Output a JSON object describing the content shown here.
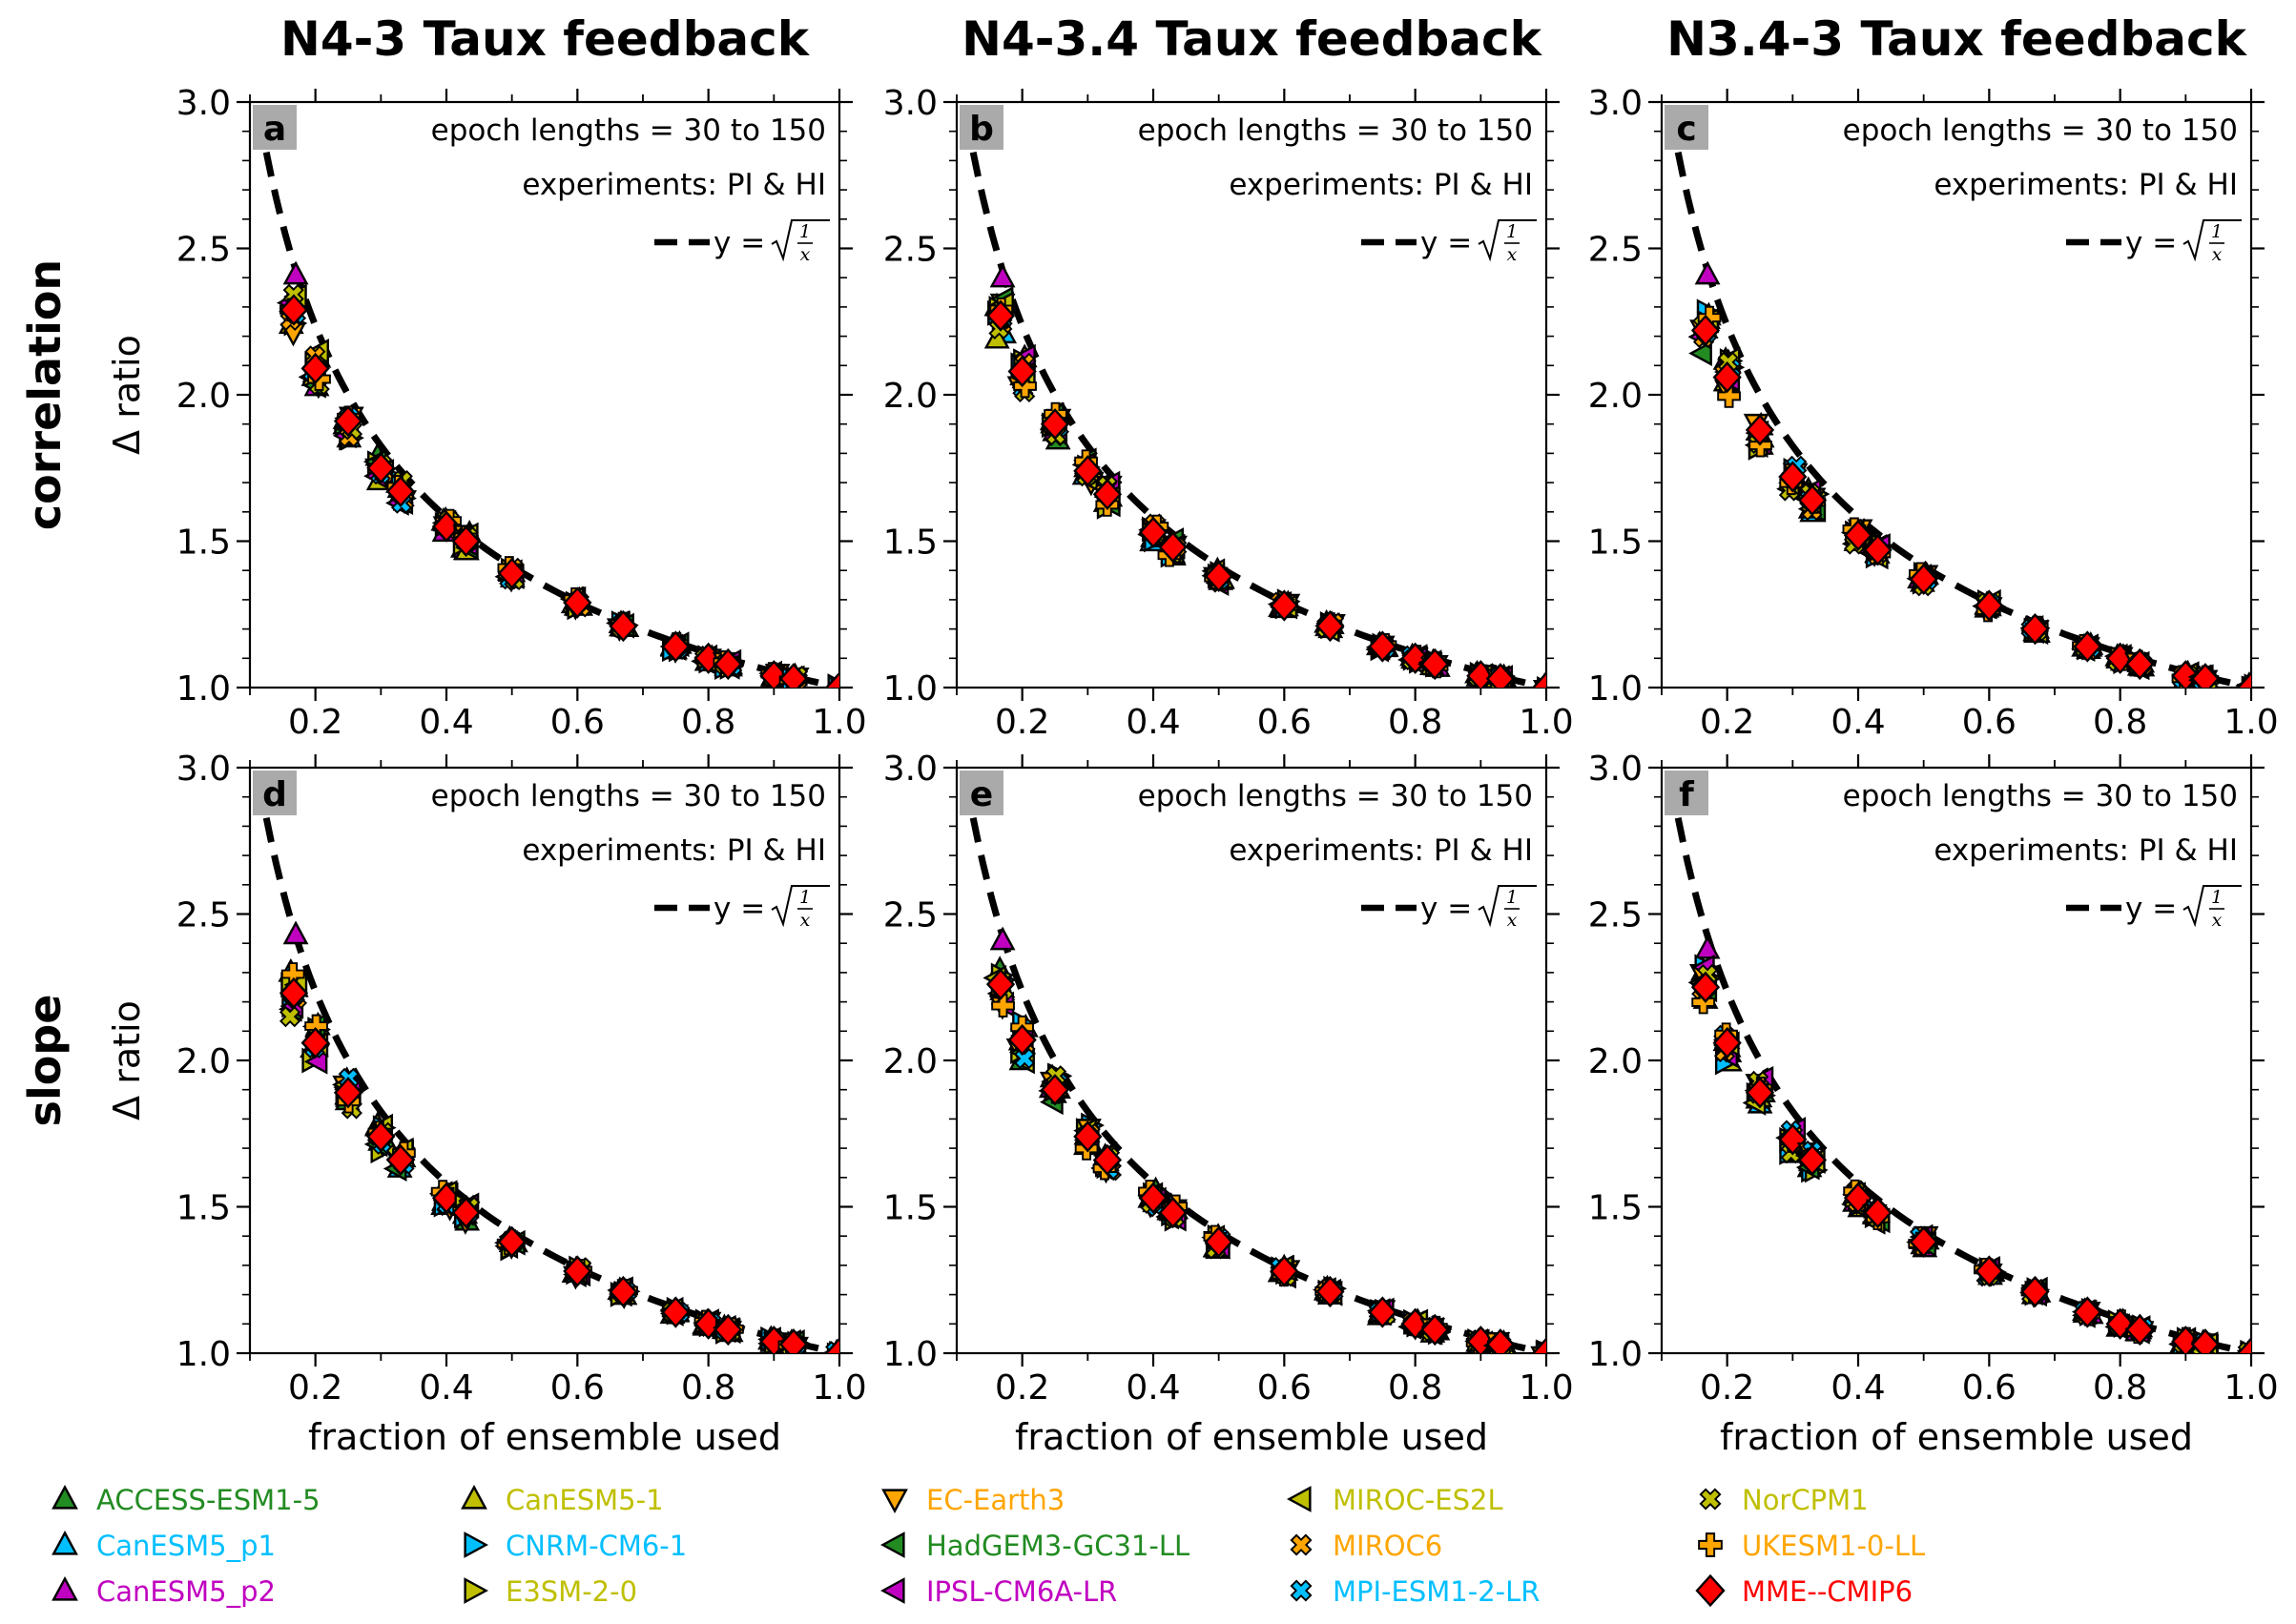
{
  "column_titles": [
    "N4-3 Taux feedback",
    "N4-3.4 Taux feedback",
    "N3.4-3 Taux feedback"
  ],
  "row_titles": [
    "correlation",
    "slope"
  ],
  "annotations": {
    "epoch": "epoch lengths = 30 to 150",
    "experiments": "experiments: PI & HI",
    "curve_prefix": "y = ",
    "frac_num": "1",
    "frac_den": "x"
  },
  "models": [
    {
      "name": "ACCESS-ESM1-5",
      "color": "#228b22",
      "marker": "triangle-up"
    },
    {
      "name": "CanESM5_p1",
      "color": "#00bfff",
      "marker": "triangle-up"
    },
    {
      "name": "CanESM5_p2",
      "color": "#c000c0",
      "marker": "triangle-up"
    },
    {
      "name": "CanESM5-1",
      "color": "#bfbf00",
      "marker": "triangle-up"
    },
    {
      "name": "CNRM-CM6-1",
      "color": "#00bfff",
      "marker": "triangle-right"
    },
    {
      "name": "E3SM-2-0",
      "color": "#bfbf00",
      "marker": "triangle-right"
    },
    {
      "name": "EC-Earth3",
      "color": "#ffa500",
      "marker": "triangle-down"
    },
    {
      "name": "HadGEM3-GC31-LL",
      "color": "#228b22",
      "marker": "triangle-left"
    },
    {
      "name": "IPSL-CM6A-LR",
      "color": "#c000c0",
      "marker": "triangle-left"
    },
    {
      "name": "MIROC-ES2L",
      "color": "#bfbf00",
      "marker": "triangle-left"
    },
    {
      "name": "MIROC6",
      "color": "#ffa500",
      "marker": "x"
    },
    {
      "name": "MPI-ESM1-2-LR",
      "color": "#00bfff",
      "marker": "x"
    },
    {
      "name": "NorCPM1",
      "color": "#bfbf00",
      "marker": "x"
    },
    {
      "name": "UKESM1-0-LL",
      "color": "#ffa500",
      "marker": "plus"
    },
    {
      "name": "MME--CMIP6",
      "color": "#ff0000",
      "marker": "diamond"
    }
  ],
  "chart_data": [
    {
      "type": "scatter",
      "panel": "a",
      "column": "N4-3 Taux feedback",
      "row": "correlation",
      "xlabel": "",
      "ylabel": "Δ ratio",
      "xlim": [
        0.1,
        1.0
      ],
      "ylim": [
        1.0,
        3.0
      ],
      "xticks": [
        0.2,
        0.4,
        0.6,
        0.8,
        1.0
      ],
      "yticks": [
        1.0,
        1.5,
        2.0,
        2.5,
        3.0
      ],
      "curve": {
        "label": "y = √(1/x)",
        "style": "dashed",
        "color": "#000000",
        "x_range": [
          0.125,
          1.0
        ]
      },
      "x": [
        0.167,
        0.2,
        0.25,
        0.3,
        0.33,
        0.4,
        0.43,
        0.5,
        0.6,
        0.67,
        0.75,
        0.8,
        0.83,
        0.9,
        0.93,
        1.0
      ],
      "mme_values": [
        2.29,
        2.09,
        1.91,
        1.75,
        1.67,
        1.55,
        1.5,
        1.39,
        1.29,
        1.21,
        1.14,
        1.1,
        1.08,
        1.04,
        1.03,
        1.0
      ],
      "lowest_point_spread": 0.05,
      "topmost_marker": {
        "model": "CanESM5_p2",
        "x": 0.167,
        "y": 2.41
      }
    },
    {
      "type": "scatter",
      "panel": "b",
      "column": "N4-3.4 Taux feedback",
      "row": "correlation",
      "xlabel": "",
      "ylabel": "",
      "xlim": [
        0.1,
        1.0
      ],
      "ylim": [
        1.0,
        3.0
      ],
      "xticks": [
        0.2,
        0.4,
        0.6,
        0.8,
        1.0
      ],
      "yticks": [
        1.0,
        1.5,
        2.0,
        2.5,
        3.0
      ],
      "curve": {
        "label": "y = √(1/x)",
        "style": "dashed",
        "color": "#000000",
        "x_range": [
          0.125,
          1.0
        ]
      },
      "x": [
        0.167,
        0.2,
        0.25,
        0.3,
        0.33,
        0.4,
        0.43,
        0.5,
        0.6,
        0.67,
        0.75,
        0.8,
        0.83,
        0.9,
        0.93,
        1.0
      ],
      "mme_values": [
        2.27,
        2.08,
        1.9,
        1.74,
        1.66,
        1.53,
        1.48,
        1.38,
        1.28,
        1.21,
        1.14,
        1.1,
        1.08,
        1.04,
        1.03,
        1.0
      ],
      "lowest_point_spread": 0.05,
      "topmost_marker": {
        "model": "CanESM5_p2",
        "x": 0.167,
        "y": 2.4
      }
    },
    {
      "type": "scatter",
      "panel": "c",
      "column": "N3.4-3 Taux feedback",
      "row": "correlation",
      "xlabel": "",
      "ylabel": "",
      "xlim": [
        0.1,
        1.0
      ],
      "ylim": [
        1.0,
        3.0
      ],
      "xticks": [
        0.2,
        0.4,
        0.6,
        0.8,
        1.0
      ],
      "yticks": [
        1.0,
        1.5,
        2.0,
        2.5,
        3.0
      ],
      "curve": {
        "label": "y = √(1/x)",
        "style": "dashed",
        "color": "#000000",
        "x_range": [
          0.125,
          1.0
        ]
      },
      "x": [
        0.167,
        0.2,
        0.25,
        0.3,
        0.33,
        0.4,
        0.43,
        0.5,
        0.6,
        0.67,
        0.75,
        0.8,
        0.83,
        0.9,
        0.93,
        1.0
      ],
      "mme_values": [
        2.22,
        2.06,
        1.88,
        1.72,
        1.64,
        1.52,
        1.47,
        1.37,
        1.28,
        1.2,
        1.14,
        1.1,
        1.08,
        1.04,
        1.03,
        1.0
      ],
      "lowest_point_spread": 0.05,
      "topmost_marker": {
        "model": "CanESM5_p2",
        "x": 0.167,
        "y": 2.41
      }
    },
    {
      "type": "scatter",
      "panel": "d",
      "column": "N4-3 Taux feedback",
      "row": "slope",
      "xlabel": "fraction of ensemble used",
      "ylabel": "Δ ratio",
      "xlim": [
        0.1,
        1.0
      ],
      "ylim": [
        1.0,
        3.0
      ],
      "xticks": [
        0.2,
        0.4,
        0.6,
        0.8,
        1.0
      ],
      "yticks": [
        1.0,
        1.5,
        2.0,
        2.5,
        3.0
      ],
      "curve": {
        "label": "y = √(1/x)",
        "style": "dashed",
        "color": "#000000",
        "x_range": [
          0.125,
          1.0
        ]
      },
      "x": [
        0.167,
        0.2,
        0.25,
        0.3,
        0.33,
        0.4,
        0.43,
        0.5,
        0.6,
        0.67,
        0.75,
        0.8,
        0.83,
        0.9,
        0.93,
        1.0
      ],
      "mme_values": [
        2.23,
        2.06,
        1.89,
        1.74,
        1.66,
        1.53,
        1.48,
        1.38,
        1.28,
        1.21,
        1.14,
        1.1,
        1.08,
        1.04,
        1.03,
        1.0
      ],
      "lowest_point_spread": 0.05,
      "topmost_marker": {
        "model": "CanESM5_p2",
        "x": 0.167,
        "y": 2.43
      }
    },
    {
      "type": "scatter",
      "panel": "e",
      "column": "N4-3.4 Taux feedback",
      "row": "slope",
      "xlabel": "fraction of ensemble used",
      "ylabel": "",
      "xlim": [
        0.1,
        1.0
      ],
      "ylim": [
        1.0,
        3.0
      ],
      "xticks": [
        0.2,
        0.4,
        0.6,
        0.8,
        1.0
      ],
      "yticks": [
        1.0,
        1.5,
        2.0,
        2.5,
        3.0
      ],
      "curve": {
        "label": "y = √(1/x)",
        "style": "dashed",
        "color": "#000000",
        "x_range": [
          0.125,
          1.0
        ]
      },
      "x": [
        0.167,
        0.2,
        0.25,
        0.3,
        0.33,
        0.4,
        0.43,
        0.5,
        0.6,
        0.67,
        0.75,
        0.8,
        0.83,
        0.9,
        0.93,
        1.0
      ],
      "mme_values": [
        2.26,
        2.07,
        1.9,
        1.74,
        1.66,
        1.53,
        1.48,
        1.38,
        1.28,
        1.21,
        1.14,
        1.1,
        1.08,
        1.04,
        1.03,
        1.0
      ],
      "lowest_point_spread": 0.05,
      "topmost_marker": {
        "model": "CanESM5_p2",
        "x": 0.167,
        "y": 2.41
      }
    },
    {
      "type": "scatter",
      "panel": "f",
      "column": "N3.4-3 Taux feedback",
      "row": "slope",
      "xlabel": "fraction of ensemble used",
      "ylabel": "",
      "xlim": [
        0.1,
        1.0
      ],
      "ylim": [
        1.0,
        3.0
      ],
      "xticks": [
        0.2,
        0.4,
        0.6,
        0.8,
        1.0
      ],
      "yticks": [
        1.0,
        1.5,
        2.0,
        2.5,
        3.0
      ],
      "curve": {
        "label": "y = √(1/x)",
        "style": "dashed",
        "color": "#000000",
        "x_range": [
          0.125,
          1.0
        ]
      },
      "x": [
        0.167,
        0.2,
        0.25,
        0.3,
        0.33,
        0.4,
        0.43,
        0.5,
        0.6,
        0.67,
        0.75,
        0.8,
        0.83,
        0.9,
        0.93,
        1.0
      ],
      "mme_values": [
        2.25,
        2.06,
        1.89,
        1.73,
        1.66,
        1.53,
        1.48,
        1.38,
        1.28,
        1.21,
        1.14,
        1.1,
        1.08,
        1.04,
        1.03,
        1.0
      ],
      "lowest_point_spread": 0.05,
      "topmost_marker": {
        "model": "CanESM5_p2",
        "x": 0.167,
        "y": 2.38
      }
    }
  ]
}
